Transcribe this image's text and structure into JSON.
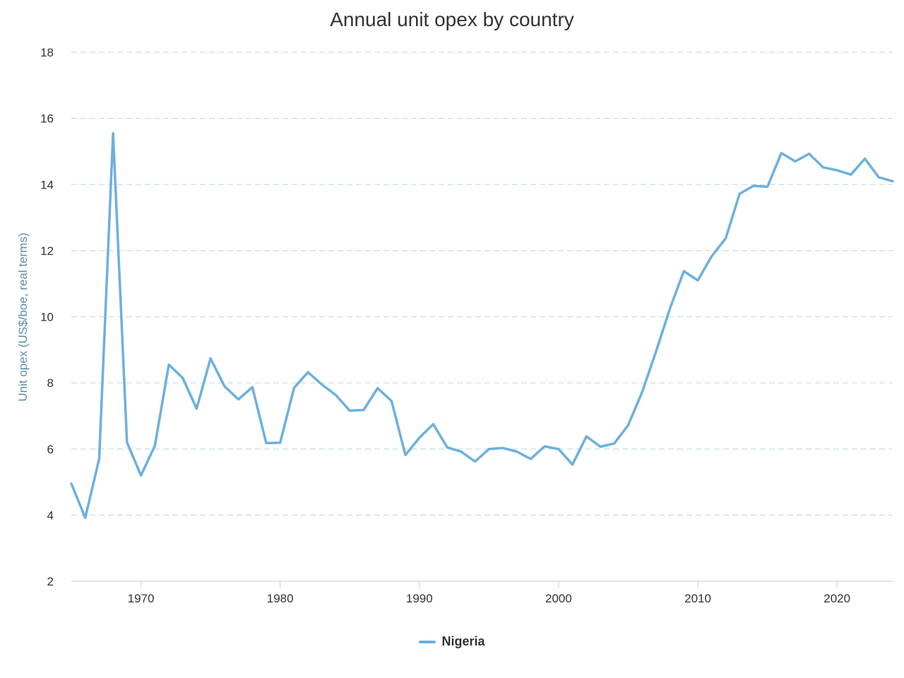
{
  "colors": {
    "series": "#6cb0df",
    "grid": "#c9dde6",
    "axis": "#cfdde4"
  },
  "chart_data": {
    "type": "line",
    "title": "Annual unit opex by country",
    "xlabel": "",
    "ylabel": "Unit opex (US$/boe, real terms)",
    "xlim": [
      1965,
      2024
    ],
    "ylim": [
      2,
      18
    ],
    "xticks": [
      1970,
      1980,
      1990,
      2000,
      2010,
      2020
    ],
    "yticks": [
      2,
      4,
      6,
      8,
      10,
      12,
      14,
      16,
      18
    ],
    "grid": "horizontal dashed",
    "legend": "bottom-center",
    "series": [
      {
        "name": "Nigeria",
        "x": [
          1965,
          1966,
          1967,
          1968,
          1969,
          1970,
          1971,
          1972,
          1973,
          1974,
          1975,
          1976,
          1977,
          1978,
          1979,
          1980,
          1981,
          1982,
          1983,
          1984,
          1985,
          1986,
          1987,
          1988,
          1989,
          1990,
          1991,
          1992,
          1993,
          1994,
          1995,
          1996,
          1997,
          1998,
          1999,
          2000,
          2001,
          2002,
          2003,
          2004,
          2005,
          2006,
          2007,
          2008,
          2009,
          2010,
          2011,
          2012,
          2013,
          2014,
          2015,
          2016,
          2017,
          2018,
          2019,
          2020,
          2021,
          2022,
          2023,
          2024
        ],
        "values": [
          4.95,
          3.92,
          5.7,
          15.55,
          6.2,
          5.2,
          6.1,
          8.55,
          8.15,
          7.22,
          8.74,
          7.9,
          7.5,
          7.87,
          6.18,
          6.19,
          7.85,
          8.32,
          7.95,
          7.63,
          7.16,
          7.18,
          7.84,
          7.45,
          5.82,
          6.34,
          6.75,
          6.05,
          5.92,
          5.62,
          6.0,
          6.03,
          5.92,
          5.7,
          6.08,
          6.0,
          5.53,
          6.38,
          6.07,
          6.17,
          6.72,
          7.72,
          8.95,
          10.25,
          11.38,
          11.1,
          11.83,
          12.37,
          13.72,
          13.96,
          13.93,
          14.95,
          14.7,
          14.93,
          14.52,
          14.43,
          14.3,
          14.78,
          14.22,
          14.1
        ]
      }
    ]
  }
}
